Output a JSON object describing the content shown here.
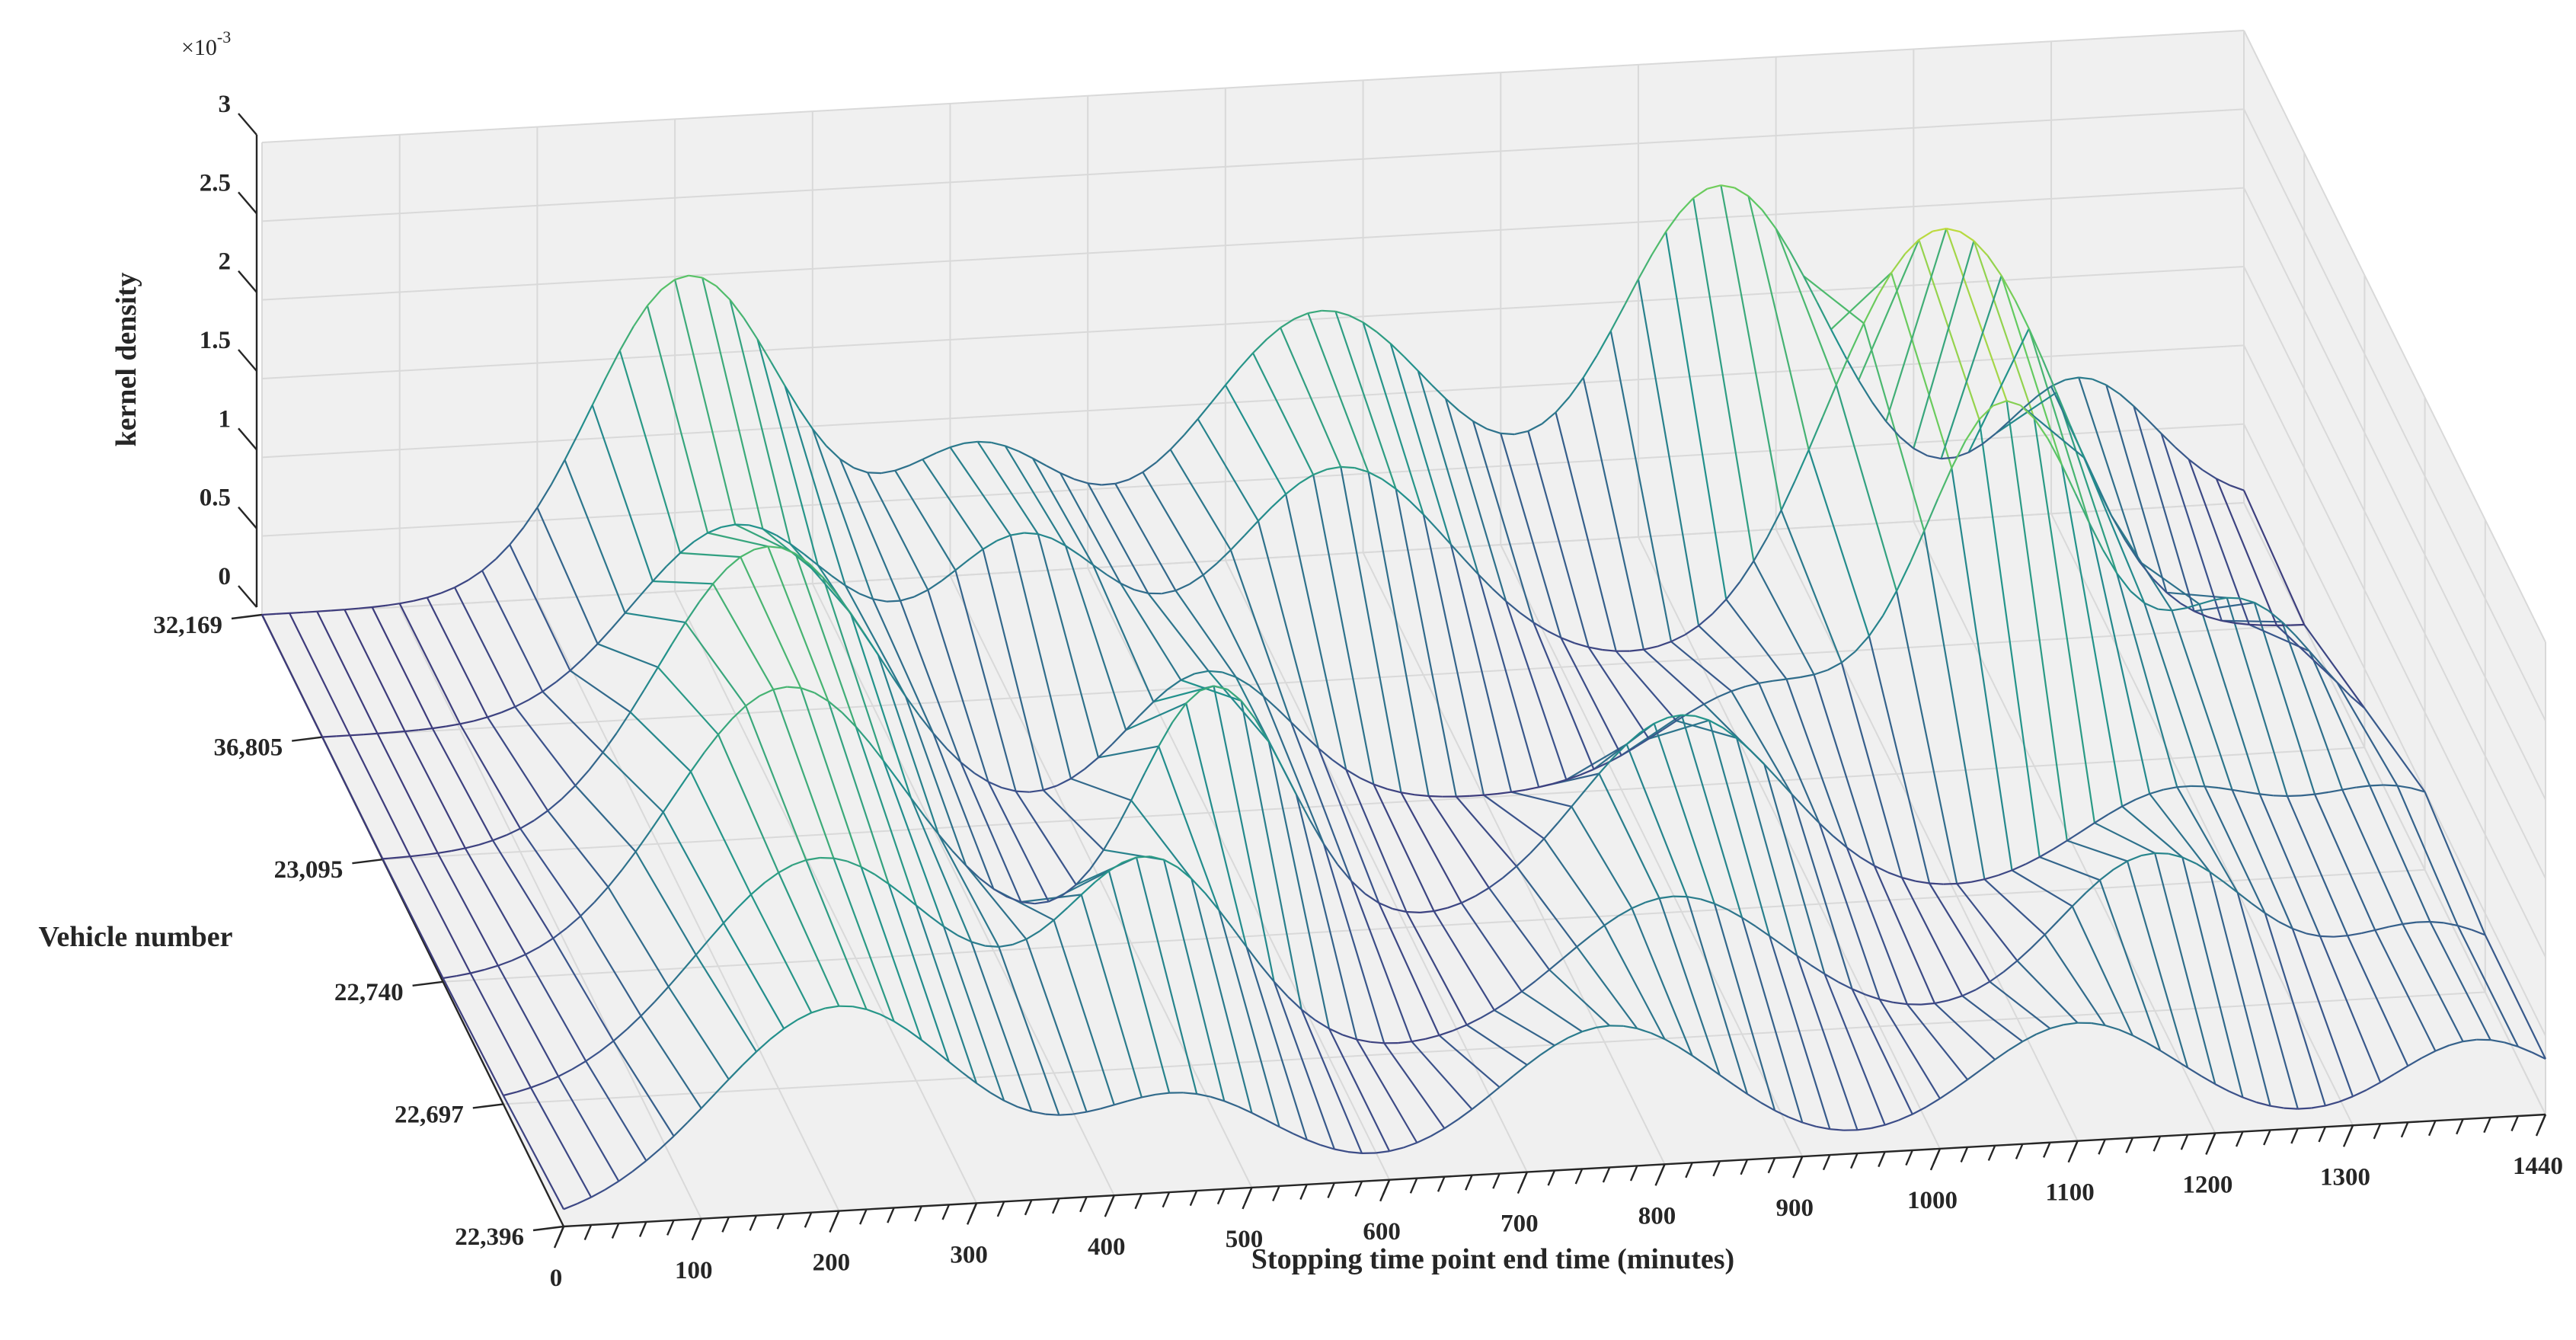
{
  "chart_data": {
    "type": "surface-mesh",
    "title": "",
    "zlabel": "kernel density",
    "ylabel": "Vehicle number",
    "xlabel": "Stopping time point end time (minutes)",
    "z_exponent_label": "×10",
    "z_exponent_power": "-3",
    "xlim": [
      0,
      1440
    ],
    "zlim": [
      0,
      3
    ],
    "x_ticks": [
      "0",
      "100",
      "200",
      "300",
      "400",
      "500",
      "600",
      "700",
      "800",
      "900",
      "1000",
      "1100",
      "1200",
      "1300",
      "1440"
    ],
    "z_ticks": [
      "0",
      "0.5",
      "1",
      "1.5",
      "2",
      "2.5",
      "3"
    ],
    "vehicles": [
      "32,169",
      "36,805",
      "23,095",
      "22,740",
      "22,697",
      "22,396"
    ],
    "colormap": [
      "#440154",
      "#3b528b",
      "#21918c",
      "#5ec962",
      "#fde725"
    ],
    "series": [
      {
        "name": "32,169",
        "peaks": [
          {
            "x": 310,
            "height": 2.0,
            "width": 70
          },
          {
            "x": 520,
            "height": 0.8,
            "width": 60
          },
          {
            "x": 770,
            "height": 1.55,
            "width": 85
          },
          {
            "x": 1060,
            "height": 2.2,
            "width": 75
          },
          {
            "x": 1320,
            "height": 0.85,
            "width": 55
          }
        ]
      },
      {
        "name": "36,805",
        "peaks": [
          {
            "x": 300,
            "height": 1.2,
            "width": 75
          },
          {
            "x": 510,
            "height": 1.0,
            "width": 60
          },
          {
            "x": 740,
            "height": 1.35,
            "width": 80
          },
          {
            "x": 1150,
            "height": 2.05,
            "width": 70
          },
          {
            "x": 1230,
            "height": 1.1,
            "width": 60
          }
        ]
      },
      {
        "name": "23,095",
        "peaks": [
          {
            "x": 280,
            "height": 1.85,
            "width": 80
          },
          {
            "x": 600,
            "height": 0.9,
            "width": 60
          },
          {
            "x": 1000,
            "height": 0.6,
            "width": 70
          },
          {
            "x": 1180,
            "height": 2.3,
            "width": 60
          },
          {
            "x": 1350,
            "height": 0.95,
            "width": 55
          }
        ]
      },
      {
        "name": "22,740",
        "peaks": [
          {
            "x": 250,
            "height": 1.75,
            "width": 85
          },
          {
            "x": 560,
            "height": 1.6,
            "width": 55
          },
          {
            "x": 900,
            "height": 1.25,
            "width": 75
          },
          {
            "x": 1260,
            "height": 0.6,
            "width": 70
          },
          {
            "x": 1420,
            "height": 0.5,
            "width": 60
          }
        ]
      },
      {
        "name": "22,697",
        "peaks": [
          {
            "x": 230,
            "height": 1.45,
            "width": 90
          },
          {
            "x": 470,
            "height": 1.3,
            "width": 65
          },
          {
            "x": 850,
            "height": 0.9,
            "width": 80
          },
          {
            "x": 1200,
            "height": 1.0,
            "width": 70
          },
          {
            "x": 1400,
            "height": 0.45,
            "width": 60
          }
        ]
      },
      {
        "name": "22,396",
        "peaks": [
          {
            "x": 200,
            "height": 1.3,
            "width": 90
          },
          {
            "x": 450,
            "height": 0.6,
            "width": 70
          },
          {
            "x": 760,
            "height": 0.9,
            "width": 80
          },
          {
            "x": 1100,
            "height": 0.75,
            "width": 75
          },
          {
            "x": 1390,
            "height": 0.5,
            "width": 60
          }
        ]
      }
    ]
  }
}
